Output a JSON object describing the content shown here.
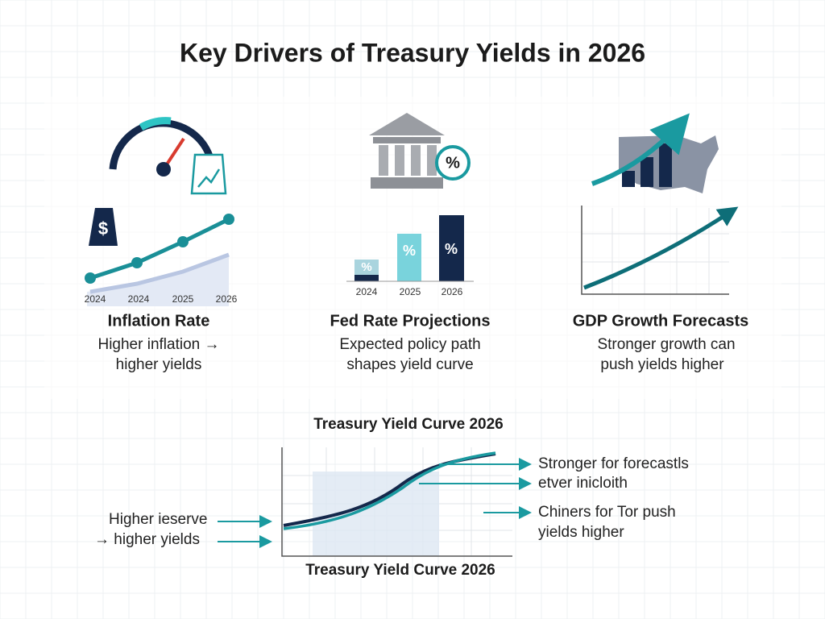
{
  "title": "Key Drivers of Treasury Yields in 2026",
  "panels": [
    {
      "title": "Inflation Rate",
      "text": [
        "Higher inflation →",
        "higher yields"
      ],
      "icon_label": "$",
      "axis_labels": [
        "2024",
        "2024",
        "2025",
        "2026"
      ]
    },
    {
      "title": "Fed Rate Projections",
      "text": [
        "Expected policy path",
        "shapes yield curve"
      ],
      "icon_label": "%",
      "axis_labels": [
        "2024",
        "2025",
        "2026"
      ]
    },
    {
      "title": "GDP Growth Forecasts",
      "text": [
        "Stronger growth can",
        "push yields higher"
      ]
    }
  ],
  "curve": {
    "title": "Treasury Yield Curve 2026",
    "caption": "Treasury Yield Curve 2026",
    "left_note": [
      "Higher ieserve",
      "→ higher yields"
    ],
    "right_notes": [
      [
        "Stronger for forecastls",
        "etver inicloith"
      ],
      [
        "Chiners for Tor push",
        "yields higher"
      ]
    ]
  }
}
